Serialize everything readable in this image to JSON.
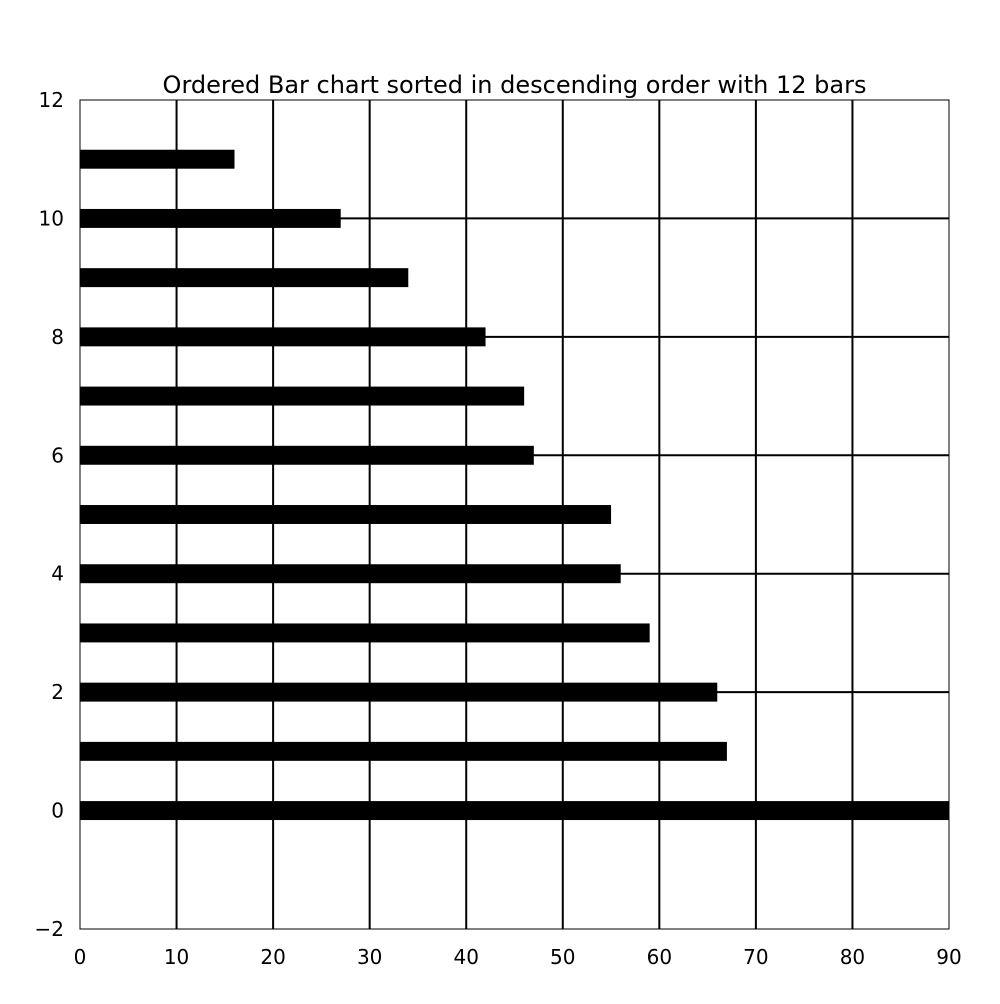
{
  "chart_data": {
    "type": "bar",
    "orientation": "horizontal",
    "title": "Ordered Bar chart sorted in descending order with 12 bars",
    "xlabel": "",
    "ylabel": "",
    "xlim": [
      0,
      90
    ],
    "ylim": [
      -2,
      12
    ],
    "x_ticks": [
      0,
      10,
      20,
      30,
      40,
      50,
      60,
      70,
      80,
      90
    ],
    "y_ticks": [
      -2,
      0,
      2,
      4,
      6,
      8,
      10,
      12
    ],
    "x_tick_labels": [
      "0",
      "10",
      "20",
      "30",
      "40",
      "50",
      "60",
      "70",
      "80",
      "90"
    ],
    "y_tick_labels": [
      "−2",
      "0",
      "2",
      "4",
      "6",
      "8",
      "10",
      "12"
    ],
    "grid": true,
    "bar_color": "#000000",
    "positions": [
      0,
      1,
      2,
      3,
      4,
      5,
      6,
      7,
      8,
      9,
      10,
      11
    ],
    "values": [
      90,
      67,
      66,
      59,
      56,
      55,
      47,
      46,
      42,
      34,
      27,
      16
    ]
  }
}
